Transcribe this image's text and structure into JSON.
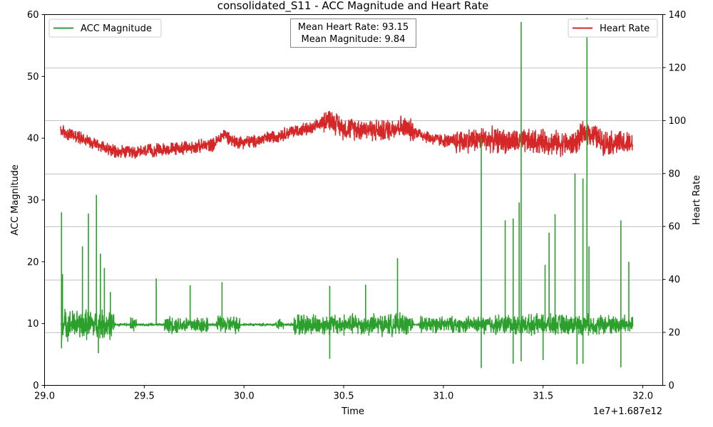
{
  "chart_data": {
    "type": "line",
    "title": "consolidated_S11 - ACC Magnitude and Heart Rate",
    "xlabel": "Time",
    "x_offset_label": "1e7+1.687e12",
    "ylabel_left": "ACC Magnitude",
    "ylabel_right": "Heart Rate",
    "xlim": [
      29.0,
      32.1
    ],
    "ylim_left": [
      0,
      60
    ],
    "ylim_right": [
      0,
      140
    ],
    "x_ticks": [
      "29.0",
      "29.5",
      "30.0",
      "30.5",
      "31.0",
      "31.5",
      "32.0"
    ],
    "y_ticks_left": [
      "0",
      "10",
      "20",
      "30",
      "40",
      "50",
      "60"
    ],
    "y_ticks_right": [
      "0",
      "20",
      "40",
      "60",
      "80",
      "100",
      "120",
      "140"
    ],
    "grid": "horizontal lines on right axis",
    "annotation": [
      "Mean Heart Rate: 93.15",
      "Mean Magnitude: 9.84"
    ],
    "legend_left": {
      "label": "ACC Magnitude",
      "color": "#2ca02c",
      "placement": "upper-left"
    },
    "legend_right": {
      "label": "Heart Rate",
      "color": "#d62728",
      "placement": "upper-right"
    },
    "series": [
      {
        "name": "ACC Magnitude",
        "axis": "left",
        "color": "#2ca02c",
        "x_range": [
          29.08,
          31.95
        ],
        "baseline": 9.84,
        "peaks": [
          [
            29.085,
            28.0
          ],
          [
            29.09,
            18.0
          ],
          [
            29.19,
            22.5
          ],
          [
            29.22,
            27.8
          ],
          [
            29.26,
            30.8
          ],
          [
            29.28,
            21.3
          ],
          [
            29.3,
            19.0
          ],
          [
            29.33,
            15.1
          ],
          [
            29.56,
            17.3
          ],
          [
            29.73,
            16.2
          ],
          [
            29.89,
            16.7
          ],
          [
            30.43,
            16.1
          ],
          [
            30.61,
            16.3
          ],
          [
            30.77,
            20.6
          ],
          [
            31.19,
            40.0
          ],
          [
            31.31,
            26.7
          ],
          [
            31.35,
            27.0
          ],
          [
            31.38,
            29.6
          ],
          [
            31.39,
            58.8
          ],
          [
            31.51,
            19.5
          ],
          [
            31.53,
            24.7
          ],
          [
            31.56,
            27.7
          ],
          [
            31.66,
            34.3
          ],
          [
            31.7,
            33.5
          ],
          [
            31.72,
            59.5
          ],
          [
            31.73,
            22.5
          ],
          [
            31.89,
            26.7
          ],
          [
            31.93,
            20.0
          ]
        ],
        "troughs": [
          [
            29.085,
            6.0
          ],
          [
            29.27,
            5.2
          ],
          [
            30.43,
            4.3
          ],
          [
            31.19,
            2.8
          ],
          [
            31.35,
            3.5
          ],
          [
            31.39,
            3.9
          ],
          [
            31.5,
            4.1
          ],
          [
            31.67,
            3.4
          ],
          [
            31.7,
            3.5
          ],
          [
            31.89,
            2.9
          ]
        ]
      },
      {
        "name": "Heart Rate",
        "axis": "right",
        "color": "#d62728",
        "mean": 93.15,
        "x": [
          29.08,
          29.2,
          29.3,
          29.35,
          29.45,
          29.6,
          29.75,
          29.85,
          29.9,
          29.95,
          30.05,
          30.15,
          30.25,
          30.35,
          30.42,
          30.5,
          30.6,
          30.7,
          30.78,
          30.85,
          30.95,
          31.05,
          31.2,
          31.35,
          31.5,
          31.65,
          31.72,
          31.8,
          31.95
        ],
        "y": [
          96,
          93,
          90,
          88,
          88,
          89,
          90,
          91,
          95,
          92,
          92,
          94,
          96,
          97,
          101,
          97,
          97,
          96,
          98,
          96,
          93,
          92,
          93,
          92,
          92,
          91,
          96,
          92,
          91
        ]
      }
    ]
  }
}
